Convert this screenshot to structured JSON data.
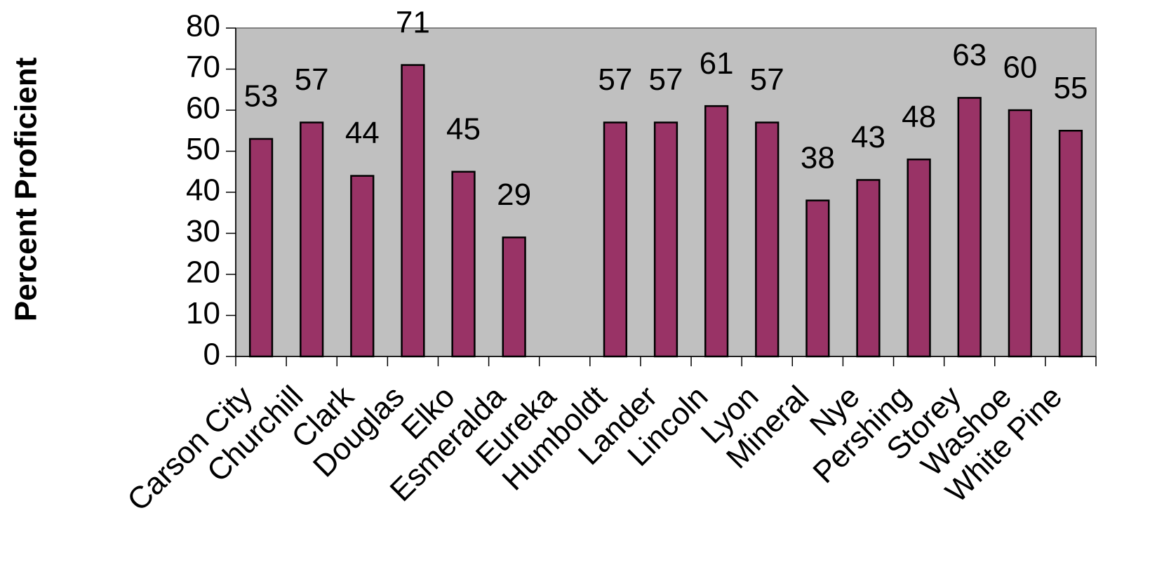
{
  "chart_data": {
    "type": "bar",
    "y_label": "Percent Proficient",
    "categories": [
      "Carson City",
      "Churchill",
      "Clark",
      "Douglas",
      "Elko",
      "Esmeralda",
      "Eureka",
      "Humboldt",
      "Lander",
      "Lincoln",
      "Lyon",
      "Mineral",
      "Nye",
      "Pershing",
      "Storey",
      "Washoe",
      "White Pine"
    ],
    "values": [
      53,
      57,
      44,
      71,
      45,
      29,
      null,
      57,
      57,
      61,
      57,
      38,
      43,
      48,
      63,
      60,
      55
    ],
    "color": "#993366",
    "ylim": [
      0,
      80
    ],
    "yticks": [
      0,
      10,
      20,
      30,
      40,
      50,
      60,
      70,
      80
    ]
  }
}
